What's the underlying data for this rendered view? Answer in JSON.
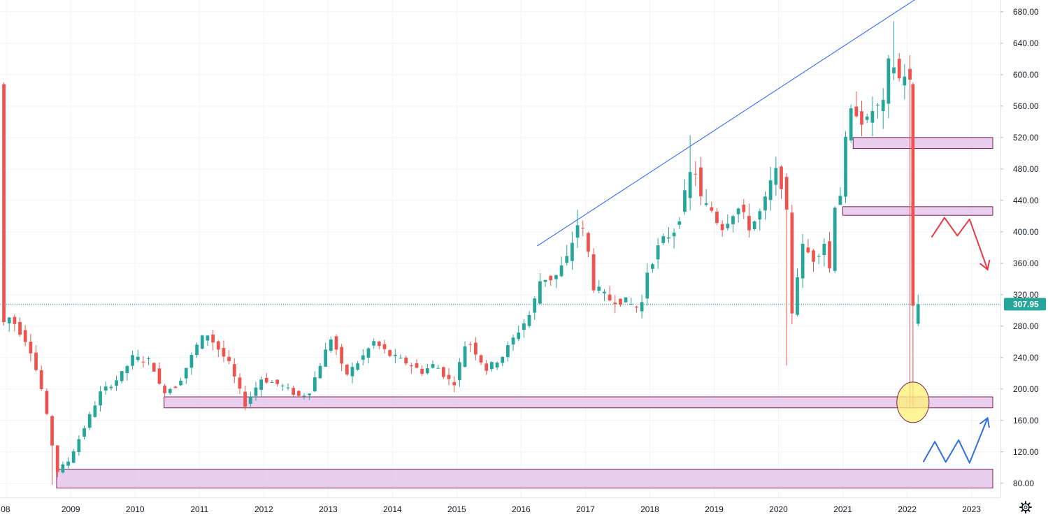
{
  "chart_data": {
    "type": "candlestick",
    "interval": "monthly",
    "ylim": [
      62,
      695
    ],
    "xlim": [
      2007.9,
      2023.45
    ],
    "y_ticks": [
      "80.00",
      "120.00",
      "160.00",
      "200.00",
      "240.00",
      "280.00",
      "320.00",
      "360.00",
      "400.00",
      "440.00",
      "480.00",
      "520.00",
      "560.00",
      "600.00",
      "640.00",
      "680.00"
    ],
    "x_ticks": [
      "08",
      "2009",
      "2010",
      "2011",
      "2012",
      "2013",
      "2014",
      "2015",
      "2016",
      "2017",
      "2018",
      "2019",
      "2020",
      "2021",
      "2022",
      "2023"
    ],
    "last_price": {
      "label": "307.95",
      "value": 307.95
    },
    "colors": {
      "up": "#26a69a",
      "down": "#ef5350",
      "zone_fill": "#e1bee7",
      "zone_border": "#7b1f55",
      "trendline": "#2962ff",
      "price_tag": "#26a69a"
    },
    "key_candles": [
      {
        "date": "2008-10",
        "low": 78
      },
      {
        "date": "2016-12",
        "high": 428
      },
      {
        "date": "2018-09",
        "high": 523
      },
      {
        "date": "2020-03",
        "low": 230
      },
      {
        "date": "2021-11",
        "high": 668
      },
      {
        "date": "2022-02",
        "open": 588,
        "high": 590,
        "low": 175,
        "close": 306
      },
      {
        "date": "2022-03",
        "open": 283,
        "high": 320,
        "low": 280,
        "close": 307.95
      }
    ],
    "trendline": {
      "from": {
        "t": 2016.25,
        "v": 382
      },
      "to": {
        "t": 2022.3,
        "v": 705
      }
    },
    "zones": [
      {
        "t1": 2021.16,
        "t2": 2023.33,
        "v1": 506,
        "v2": 520
      },
      {
        "t1": 2021.0,
        "t2": 2023.33,
        "v1": 421,
        "v2": 432
      },
      {
        "t1": 2010.45,
        "t2": 2023.33,
        "v1": 176,
        "v2": 190
      },
      {
        "t1": 2008.78,
        "t2": 2023.33,
        "v1": 74,
        "v2": 98
      }
    ],
    "highlight_circle": {
      "t": 2022.09,
      "v": 183
    },
    "projections": [
      {
        "color": "down",
        "points": [
          [
            2022.38,
            393
          ],
          [
            2022.58,
            418
          ],
          [
            2022.78,
            395
          ],
          [
            2022.97,
            416
          ],
          [
            2023.25,
            352
          ]
        ]
      },
      {
        "color": "up",
        "points": [
          [
            2022.25,
            107
          ],
          [
            2022.43,
            133
          ],
          [
            2022.6,
            107
          ],
          [
            2022.8,
            135
          ],
          [
            2022.97,
            106
          ],
          [
            2023.25,
            163
          ]
        ]
      }
    ]
  }
}
